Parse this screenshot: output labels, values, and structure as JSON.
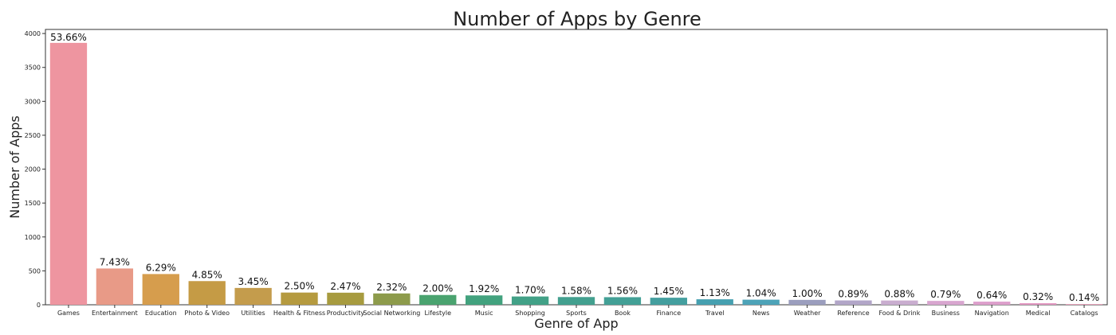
{
  "chart_data": {
    "type": "bar",
    "title": "Number of Apps by Genre",
    "xlabel": "Genre of App",
    "ylabel": "Number of Apps",
    "ylim": [
      0,
      4060
    ],
    "yticks": [
      0,
      500,
      1000,
      1500,
      2000,
      2500,
      3000,
      3500,
      4000
    ],
    "grid": false,
    "categories": [
      "Games",
      "Entertainment",
      "Education",
      "Photo & Video",
      "Utilities",
      "Health & Fitness",
      "Productivity",
      "Social Networking",
      "Lifestyle",
      "Music",
      "Shopping",
      "Sports",
      "Book",
      "Finance",
      "Travel",
      "News",
      "Weather",
      "Reference",
      "Food & Drink",
      "Business",
      "Navigation",
      "Medical",
      "Catalogs"
    ],
    "values": [
      3862,
      535,
      453,
      349,
      248,
      180,
      178,
      167,
      144,
      138,
      122,
      114,
      112,
      104,
      81,
      75,
      72,
      64,
      63,
      57,
      46,
      23,
      10
    ],
    "data_labels": [
      "53.66%",
      "7.43%",
      "6.29%",
      "4.85%",
      "3.45%",
      "2.50%",
      "2.47%",
      "2.32%",
      "2.00%",
      "1.92%",
      "1.70%",
      "1.58%",
      "1.56%",
      "1.45%",
      "1.13%",
      "1.04%",
      "1.00%",
      "0.89%",
      "0.88%",
      "0.79%",
      "0.64%",
      "0.32%",
      "0.14%"
    ],
    "colors": [
      "#ee95a0",
      "#e89a87",
      "#d69d4d",
      "#c59b45",
      "#c49c4c",
      "#b59a3f",
      "#a79b3f",
      "#8d9b4b",
      "#4aa36f",
      "#42a27e",
      "#42a187",
      "#43a08f",
      "#43a096",
      "#449f9f",
      "#46a0b0",
      "#4da3b8",
      "#9b9ebe",
      "#b2a6c8",
      "#c9adcf",
      "#d8a6cf",
      "#dd9fcc",
      "#e296c1",
      "#e694b2"
    ]
  }
}
